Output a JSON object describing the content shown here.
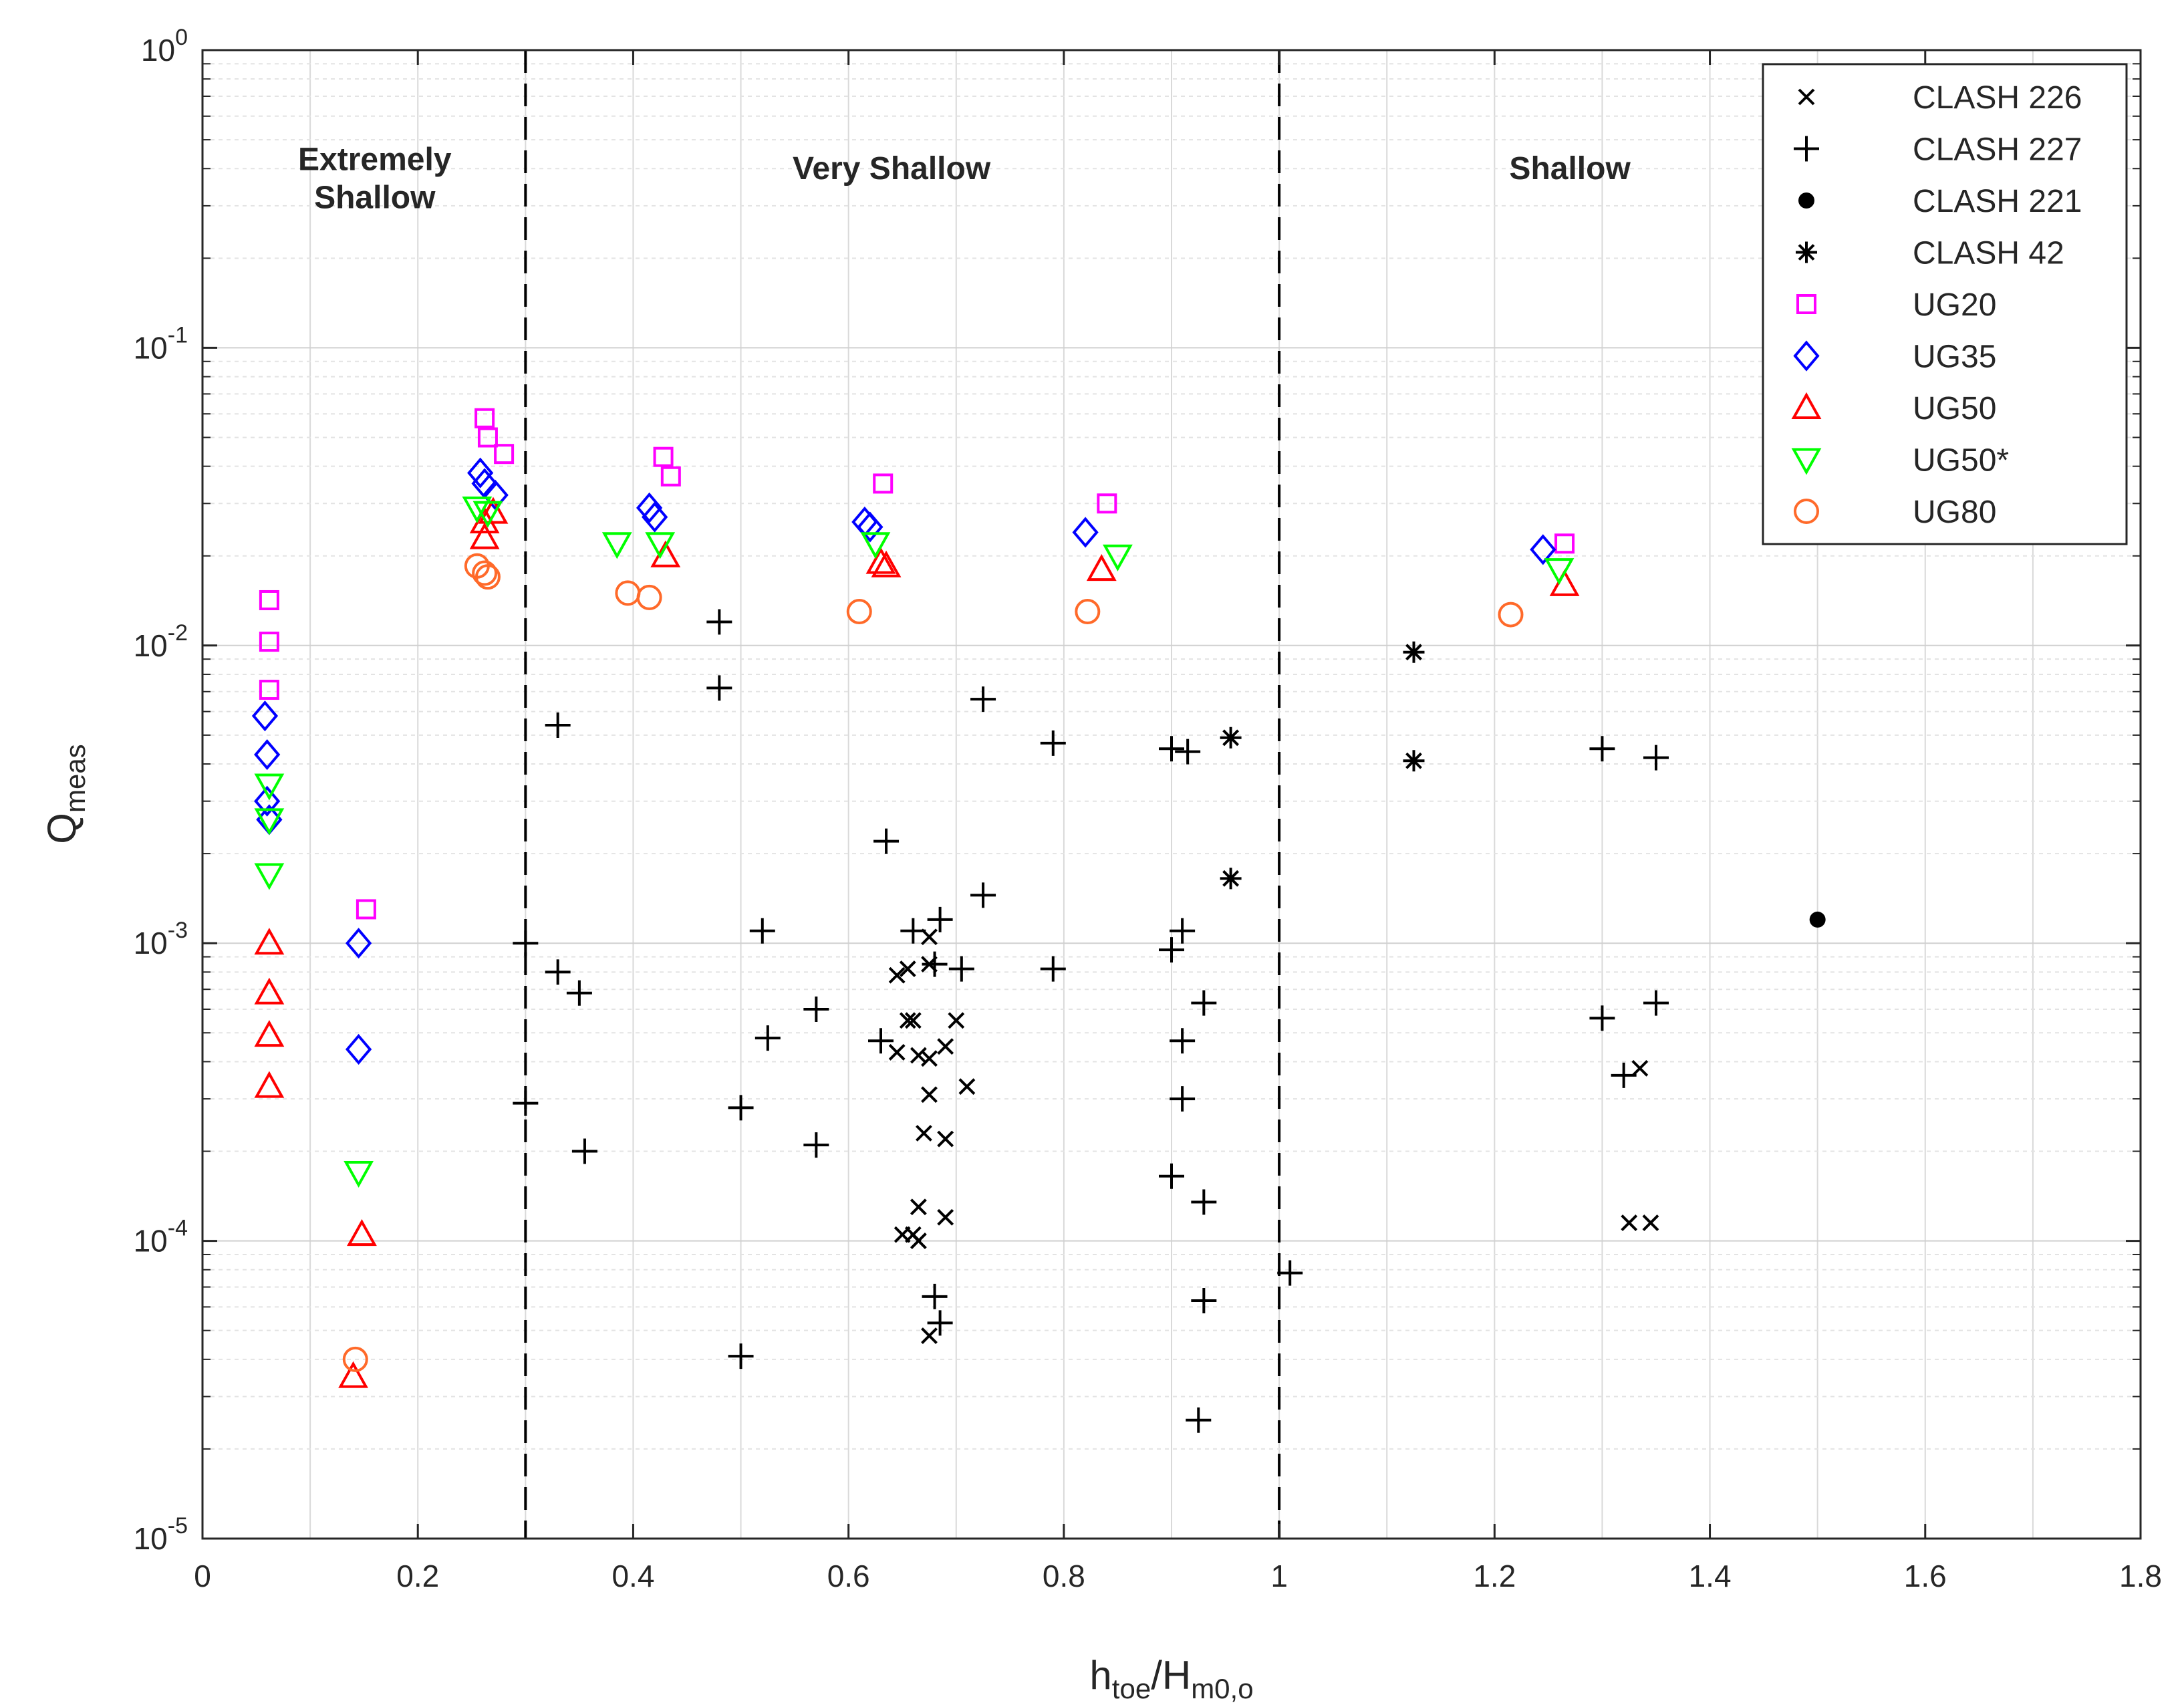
{
  "chart_data": {
    "type": "scatter",
    "xlabel": "h_toe/H_m0,o",
    "xlabel_parts": {
      "main": "h",
      "sub1": "toe",
      "slash": "/H",
      "sub2": "m0,o"
    },
    "ylabel": "Q_meas",
    "ylabel_parts": {
      "main": "Q",
      "sub": "meas"
    },
    "xlim": [
      0,
      1.8
    ],
    "ylim": [
      1e-05,
      1
    ],
    "yscale": "log",
    "grid": true,
    "legend_position": "top-right",
    "x_ticks": [
      {
        "v": 0,
        "label": "0"
      },
      {
        "v": 0.2,
        "label": "0.2"
      },
      {
        "v": 0.4,
        "label": "0.4"
      },
      {
        "v": 0.6,
        "label": "0.6"
      },
      {
        "v": 0.8,
        "label": "0.8"
      },
      {
        "v": 1,
        "label": "1"
      },
      {
        "v": 1.2,
        "label": "1.2"
      },
      {
        "v": 1.4,
        "label": "1.4"
      },
      {
        "v": 1.6,
        "label": "1.6"
      },
      {
        "v": 1.8,
        "label": "1.8"
      }
    ],
    "y_ticks": [
      {
        "exp": 0,
        "base": "10",
        "sup": "0"
      },
      {
        "exp": -1,
        "base": "10",
        "sup": "-1"
      },
      {
        "exp": -2,
        "base": "10",
        "sup": "-2"
      },
      {
        "exp": -3,
        "base": "10",
        "sup": "-3"
      },
      {
        "exp": -4,
        "base": "10",
        "sup": "-4"
      },
      {
        "exp": -5,
        "base": "10",
        "sup": "-5"
      }
    ],
    "region_boundaries": [
      0.3,
      1.0
    ],
    "regions": [
      {
        "name": "Extremely",
        "x": 0.16,
        "y": 0.43
      },
      {
        "name": "Shallow",
        "x": 0.16,
        "y": 0.32
      },
      {
        "name": "Very Shallow",
        "x": 0.64,
        "y": 0.4
      },
      {
        "name": "Shallow",
        "x": 1.27,
        "y": 0.4
      }
    ],
    "series": [
      {
        "name": "CLASH 226",
        "marker": "x",
        "color": "#000000",
        "points": [
          [
            0.645,
            0.00078
          ],
          [
            0.655,
            0.00082
          ],
          [
            0.675,
            0.00105
          ],
          [
            0.675,
            0.00085
          ],
          [
            0.655,
            0.00055
          ],
          [
            0.66,
            0.00055
          ],
          [
            0.7,
            0.00055
          ],
          [
            0.645,
            0.00043
          ],
          [
            0.665,
            0.00042
          ],
          [
            0.675,
            0.00041
          ],
          [
            0.69,
            0.00045
          ],
          [
            0.675,
            0.00031
          ],
          [
            0.71,
            0.00033
          ],
          [
            0.67,
            0.00023
          ],
          [
            0.69,
            0.00022
          ],
          [
            0.665,
            0.00013
          ],
          [
            0.69,
            0.00012
          ],
          [
            0.66,
            0.000105
          ],
          [
            0.665,
            0.0001
          ],
          [
            0.65,
            0.000105
          ],
          [
            0.675,
            4.8e-05
          ],
          [
            1.325,
            0.000115
          ],
          [
            1.345,
            0.000115
          ],
          [
            1.335,
            0.00038
          ]
        ]
      },
      {
        "name": "CLASH 227",
        "marker": "plus",
        "color": "#000000",
        "points": [
          [
            0.48,
            0.012
          ],
          [
            0.48,
            0.0072
          ],
          [
            0.33,
            0.0054
          ],
          [
            0.725,
            0.0066
          ],
          [
            0.79,
            0.0047
          ],
          [
            0.9,
            0.0045
          ],
          [
            0.915,
            0.0044
          ],
          [
            1.3,
            0.0045
          ],
          [
            1.35,
            0.0042
          ],
          [
            0.635,
            0.0022
          ],
          [
            0.725,
            0.00145
          ],
          [
            0.52,
            0.0011
          ],
          [
            0.66,
            0.0011
          ],
          [
            0.685,
            0.0012
          ],
          [
            0.91,
            0.0011
          ],
          [
            0.3,
            0.001
          ],
          [
            0.9,
            0.00095
          ],
          [
            0.33,
            0.0008
          ],
          [
            0.35,
            0.00068
          ],
          [
            0.68,
            0.00085
          ],
          [
            0.705,
            0.00082
          ],
          [
            0.79,
            0.00082
          ],
          [
            0.57,
            0.0006
          ],
          [
            0.93,
            0.00063
          ],
          [
            1.35,
            0.00063
          ],
          [
            1.3,
            0.00056
          ],
          [
            0.525,
            0.00048
          ],
          [
            0.63,
            0.00047
          ],
          [
            0.91,
            0.00047
          ],
          [
            1.32,
            0.00036
          ],
          [
            0.3,
            0.00029
          ],
          [
            0.5,
            0.00028
          ],
          [
            0.91,
            0.0003
          ],
          [
            0.355,
            0.0002
          ],
          [
            0.57,
            0.00021
          ],
          [
            0.9,
            0.000165
          ],
          [
            0.93,
            0.000135
          ],
          [
            1.01,
            7.8e-05
          ],
          [
            0.68,
            6.5e-05
          ],
          [
            0.685,
            5.3e-05
          ],
          [
            0.93,
            6.3e-05
          ],
          [
            0.5,
            4.1e-05
          ],
          [
            0.925,
            2.5e-05
          ]
        ]
      },
      {
        "name": "CLASH 221",
        "marker": "dot",
        "color": "#000000",
        "points": [
          [
            1.5,
            0.0012
          ]
        ]
      },
      {
        "name": "CLASH 42",
        "marker": "star",
        "color": "#000000",
        "points": [
          [
            1.125,
            0.0095
          ],
          [
            1.125,
            0.0041
          ],
          [
            0.955,
            0.0049
          ],
          [
            0.955,
            0.00165
          ]
        ]
      },
      {
        "name": "UG20",
        "marker": "square",
        "color": "#ff00ff",
        "points": [
          [
            0.062,
            0.0142
          ],
          [
            0.062,
            0.0103
          ],
          [
            0.062,
            0.0071
          ],
          [
            0.152,
            0.0013
          ],
          [
            0.262,
            0.058
          ],
          [
            0.265,
            0.05
          ],
          [
            0.28,
            0.044
          ],
          [
            0.428,
            0.043
          ],
          [
            0.435,
            0.037
          ],
          [
            0.632,
            0.035
          ],
          [
            0.84,
            0.03
          ],
          [
            1.265,
            0.022
          ]
        ]
      },
      {
        "name": "UG35",
        "marker": "diamond",
        "color": "#0000ff",
        "points": [
          [
            0.058,
            0.0058
          ],
          [
            0.06,
            0.0043
          ],
          [
            0.06,
            0.003
          ],
          [
            0.062,
            0.0026
          ],
          [
            0.145,
            0.001
          ],
          [
            0.145,
            0.00044
          ],
          [
            0.258,
            0.038
          ],
          [
            0.262,
            0.035
          ],
          [
            0.272,
            0.032
          ],
          [
            0.415,
            0.029
          ],
          [
            0.42,
            0.027
          ],
          [
            0.615,
            0.026
          ],
          [
            0.62,
            0.025
          ],
          [
            0.82,
            0.024
          ],
          [
            1.245,
            0.021
          ]
        ]
      },
      {
        "name": "UG50",
        "marker": "triangle-up",
        "color": "#ff0000",
        "points": [
          [
            0.062,
            0.001
          ],
          [
            0.062,
            0.00068
          ],
          [
            0.062,
            0.00049
          ],
          [
            0.062,
            0.00033
          ],
          [
            0.148,
            0.000105
          ],
          [
            0.14,
            3.5e-05
          ],
          [
            0.262,
            0.026
          ],
          [
            0.27,
            0.028
          ],
          [
            0.262,
            0.023
          ],
          [
            0.43,
            0.02
          ],
          [
            0.63,
            0.019
          ],
          [
            0.635,
            0.0185
          ],
          [
            0.835,
            0.018
          ],
          [
            1.265,
            0.016
          ]
        ]
      },
      {
        "name": "UG50*",
        "marker": "triangle-down",
        "color": "#00ff00",
        "points": [
          [
            0.062,
            0.0034
          ],
          [
            0.062,
            0.0026
          ],
          [
            0.062,
            0.0017
          ],
          [
            0.145,
            0.00017
          ],
          [
            0.255,
            0.029
          ],
          [
            0.265,
            0.028
          ],
          [
            0.385,
            0.022
          ],
          [
            0.425,
            0.022
          ],
          [
            0.625,
            0.022
          ],
          [
            0.85,
            0.02
          ],
          [
            1.26,
            0.018
          ]
        ]
      },
      {
        "name": "UG80",
        "marker": "circle",
        "color": "#ff6a2a",
        "points": [
          [
            0.255,
            0.0185
          ],
          [
            0.262,
            0.0175
          ],
          [
            0.265,
            0.017
          ],
          [
            0.395,
            0.015
          ],
          [
            0.415,
            0.0145
          ],
          [
            0.61,
            0.013
          ],
          [
            0.822,
            0.013
          ],
          [
            1.215,
            0.0127
          ],
          [
            0.142,
            4e-05
          ]
        ]
      }
    ]
  }
}
